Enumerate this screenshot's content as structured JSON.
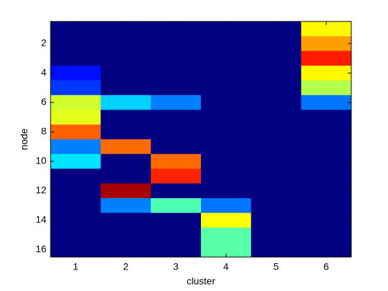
{
  "chart_data": {
    "type": "heatmap",
    "colormap": "jet",
    "clim": [
      0,
      1
    ],
    "xlabel": "cluster",
    "ylabel": "node",
    "xlim": [
      0.5,
      6.5
    ],
    "ylim": [
      0.5,
      16.5
    ],
    "y_reversed": true,
    "xticks": [
      1,
      2,
      3,
      4,
      5,
      6
    ],
    "yticks": [
      2,
      4,
      6,
      8,
      10,
      12,
      14,
      16
    ],
    "values": [
      [
        0,
        0,
        0,
        0,
        0,
        0.63
      ],
      [
        0,
        0,
        0,
        0,
        0,
        0.72
      ],
      [
        0,
        0,
        0,
        0,
        0,
        0.85
      ],
      [
        0.14,
        0,
        0,
        0,
        0,
        0.63
      ],
      [
        0.18,
        0,
        0,
        0,
        0,
        0.55
      ],
      [
        0.58,
        0.33,
        0.25,
        0,
        0,
        0.24
      ],
      [
        0.6,
        0,
        0,
        0,
        0,
        0
      ],
      [
        0.78,
        0,
        0,
        0,
        0,
        0
      ],
      [
        0.25,
        0.77,
        0,
        0,
        0,
        0
      ],
      [
        0.35,
        0,
        0.77,
        0,
        0,
        0
      ],
      [
        0,
        0,
        0.84,
        0,
        0,
        0
      ],
      [
        0,
        0.96,
        0,
        0,
        0,
        0
      ],
      [
        0,
        0.25,
        0.45,
        0.24,
        0,
        0
      ],
      [
        0,
        0,
        0,
        0.62,
        0,
        0
      ],
      [
        0,
        0,
        0,
        0.46,
        0,
        0
      ],
      [
        0,
        0,
        0,
        0.46,
        0,
        0
      ]
    ]
  }
}
